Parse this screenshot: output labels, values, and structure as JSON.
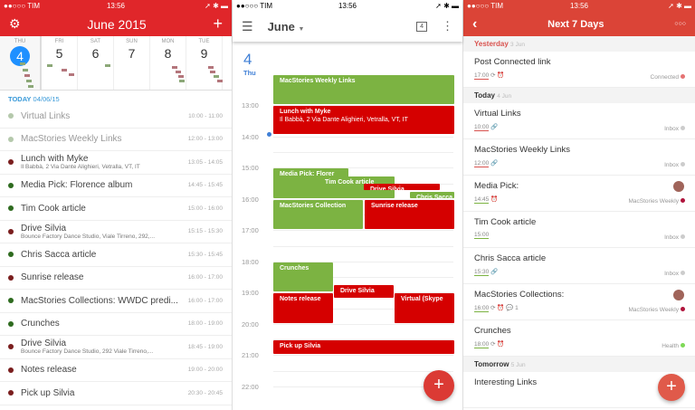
{
  "status": {
    "carrier": "●●○○○ TIM",
    "time": "13:56",
    "right": "➚ ✱ ▬"
  },
  "p1": {
    "title": "June 2015",
    "week": [
      {
        "n": "THU",
        "d": "4"
      },
      {
        "n": "FRI",
        "d": "5"
      },
      {
        "n": "SAT",
        "d": "6"
      },
      {
        "n": "SUN",
        "d": "7"
      },
      {
        "n": "MON",
        "d": "8"
      },
      {
        "n": "TUE",
        "d": "9"
      }
    ],
    "today_label": "TODAY",
    "today_date": "04/06/15",
    "items": [
      {
        "title": "Virtual Links",
        "sub": "",
        "time": "10:00 - 11:00",
        "color": "#b5c9ac",
        "past": true
      },
      {
        "title": "MacStories Weekly Links",
        "sub": "",
        "time": "12:00 - 13:00",
        "color": "#b5c9ac",
        "past": true
      },
      {
        "title": "Lunch with Myke",
        "sub": "Il Babbà, 2 Via Dante Alighieri, Vetralla, VT, IT",
        "time": "13:05 - 14:05",
        "color": "#7a1e1e"
      },
      {
        "title": "Media Pick: Florence album",
        "sub": "",
        "time": "14:45 - 15:45",
        "color": "#2e6b1f"
      },
      {
        "title": "Tim Cook article",
        "sub": "",
        "time": "15:00 - 16:00",
        "color": "#2e6b1f"
      },
      {
        "title": "Drive Silvia",
        "sub": "Bounce Factory Dance Studio, Viale Tirreno, 292,...",
        "time": "15:15 - 15:30",
        "color": "#7a1e1e"
      },
      {
        "title": "Chris Sacca article",
        "sub": "",
        "time": "15:30 - 15:45",
        "color": "#2e6b1f"
      },
      {
        "title": "Sunrise release",
        "sub": "",
        "time": "16:00 - 17:00",
        "color": "#7a1e1e"
      },
      {
        "title": "MacStories Collections: WWDC predi...",
        "sub": "",
        "time": "16:00 - 17:00",
        "color": "#2e6b1f"
      },
      {
        "title": "Crunches",
        "sub": "",
        "time": "18:00 - 19:00",
        "color": "#2e6b1f"
      },
      {
        "title": "Drive Silvia",
        "sub": "Bounce Factory Dance Studio, 292 Viale Tirreno,...",
        "time": "18:45 - 19:00",
        "color": "#7a1e1e"
      },
      {
        "title": "Notes release",
        "sub": "",
        "time": "19:00 - 20:00",
        "color": "#7a1e1e"
      },
      {
        "title": "Pick up Silvia",
        "sub": "",
        "time": "20:30 - 20:45",
        "color": "#7a1e1e"
      }
    ]
  },
  "p2": {
    "month": "June",
    "cal_day": "4",
    "day_num": "4",
    "day_name": "Thu",
    "hours": [
      "13:00",
      "14:00",
      "15:00",
      "16:00",
      "17:00",
      "18:00",
      "19:00",
      "20:00",
      "21:00",
      "22:00"
    ],
    "events": [
      {
        "title": "MacStories Weekly Links",
        "sub": "",
        "color": "green"
      },
      {
        "title": "Lunch with Myke",
        "sub": "Il Babbà, 2 Via Dante Alighieri, Vetralla, VT, IT",
        "color": "red"
      },
      {
        "title": "Media Pick: Florer",
        "sub": "",
        "color": "green"
      },
      {
        "title": "Tim Cook article",
        "sub": "",
        "color": "green"
      },
      {
        "title": "Drive Silvia",
        "sub": "",
        "color": "red"
      },
      {
        "title": "Chris Sacca",
        "sub": "",
        "color": "green"
      },
      {
        "title": "MacStories Collection",
        "sub": "",
        "color": "green"
      },
      {
        "title": "Sunrise release",
        "sub": "",
        "color": "red"
      },
      {
        "title": "Crunches",
        "sub": "",
        "color": "green"
      },
      {
        "title": "Drive Silvia",
        "sub": "",
        "color": "red"
      },
      {
        "title": "Notes release",
        "sub": "",
        "color": "red"
      },
      {
        "title": "Virtual (Skype",
        "sub": "",
        "color": "red"
      },
      {
        "title": "Pick up Silvia",
        "sub": "",
        "color": "red"
      }
    ],
    "fab": "+"
  },
  "p3": {
    "title": "Next 7 Days",
    "more": "○○○",
    "sections": [
      {
        "label": "Yesterday",
        "date": "3 Jun",
        "tasks": [
          {
            "title": "Post Connected link",
            "time": "17:00",
            "icons": "⟳ ⏰",
            "project": "Connected",
            "pcolor": "#e57373",
            "tcolor": "#d9534f"
          }
        ]
      },
      {
        "label": "Today",
        "date": "4 Jun",
        "tasks": [
          {
            "title": "Virtual Links",
            "time": "10:00",
            "icons": "🔗",
            "project": "Inbox",
            "pcolor": "#ccc",
            "tcolor": "#d9534f"
          },
          {
            "title": "MacStories Weekly Links",
            "time": "12:00",
            "icons": "🔗",
            "project": "Inbox",
            "pcolor": "#ccc",
            "tcolor": "#d9534f"
          },
          {
            "title": "Media Pick:",
            "time": "14:45",
            "icons": "⏰",
            "project": "MacStories Weekly",
            "pcolor": "#b0143c",
            "tcolor": "#7cb342",
            "avatar": true
          },
          {
            "title": "Tim Cook article",
            "time": "15:00",
            "icons": "",
            "project": "Inbox",
            "pcolor": "#ccc",
            "tcolor": "#7cb342"
          },
          {
            "title": "Chris Sacca article",
            "time": "15:30",
            "icons": "🔗",
            "project": "Inbox",
            "pcolor": "#ccc",
            "tcolor": "#7cb342"
          },
          {
            "title": "MacStories Collections:",
            "time": "16:00",
            "icons": "⟳ ⏰ 💬 1",
            "project": "MacStories Weekly",
            "pcolor": "#b0143c",
            "tcolor": "#7cb342",
            "avatar": true
          },
          {
            "title": "Crunches",
            "time": "18:00",
            "icons": "⟳ ⏰",
            "project": "Health",
            "pcolor": "#7ed957",
            "tcolor": "#7cb342"
          }
        ]
      },
      {
        "label": "Tomorrow",
        "date": "5 Jun",
        "tasks": [
          {
            "title": "Interesting Links",
            "time": "",
            "icons": "",
            "project": "",
            "pcolor": "#ccc",
            "tcolor": "#ccc",
            "avatar": true
          }
        ]
      }
    ],
    "fab": "+"
  }
}
